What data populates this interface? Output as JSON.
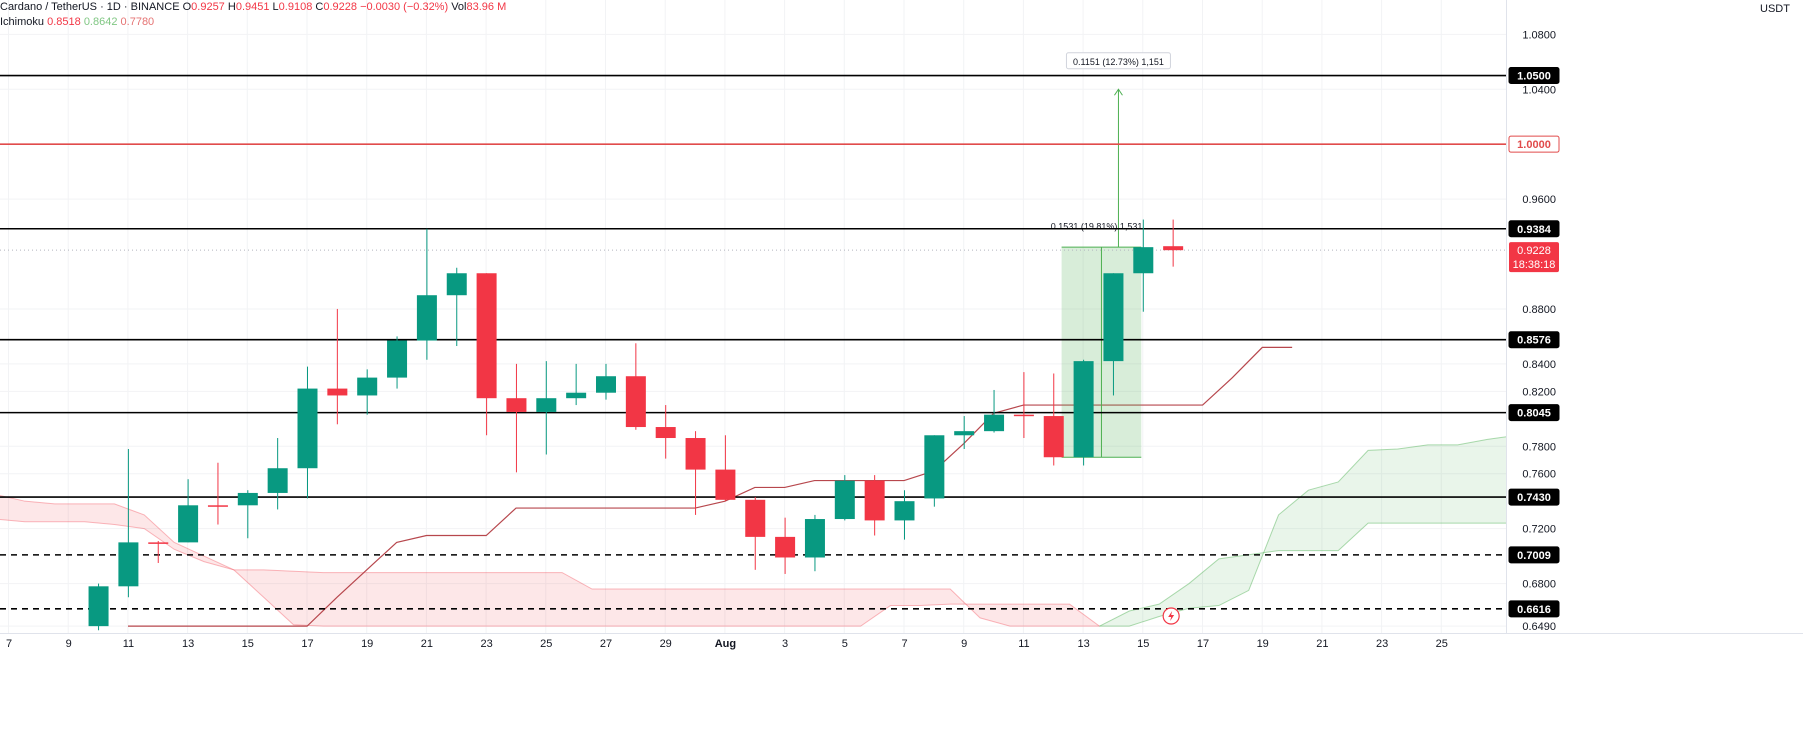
{
  "header": {
    "symbol": "Cardano / TetherUS · 1D · BINANCE",
    "o_label": "O",
    "o": "0.9257",
    "h_label": "H",
    "h": "0.9451",
    "l_label": "L",
    "l": "0.9108",
    "c_label": "C",
    "c": "0.9228",
    "change": "−0.0030 (−0.32%)",
    "vol_label": "Vol",
    "vol": "83.96 M"
  },
  "indicator": {
    "name": "Ichimoku",
    "v1": "0.8518",
    "v2": "0.8642",
    "v3": "0.7780"
  },
  "axis": {
    "currency": "USDT"
  },
  "colors": {
    "up": "#089981",
    "down": "#f23645",
    "cloud_green": "#81c784",
    "cloud_red": "#f7a1a8",
    "base_line": "#b7474d",
    "red_level": "#e14b4b",
    "measure": "#4caf50"
  },
  "chart_data": {
    "type": "candlestick",
    "x_labels": [
      "7",
      "9",
      "11",
      "13",
      "15",
      "17",
      "19",
      "21",
      "23",
      "25",
      "27",
      "29",
      "Aug",
      "3",
      "5",
      "7",
      "9",
      "11",
      "13",
      "15",
      "17",
      "19",
      "21",
      "23",
      "25"
    ],
    "y_ticks": [
      "1.0800",
      "1.0400",
      "0.9600",
      "0.8800",
      "0.8400",
      "0.8200",
      "0.7800",
      "0.7600",
      "0.7200",
      "0.6800",
      "0.6490"
    ],
    "ylim": [
      0.644,
      1.105
    ],
    "candles": [
      {
        "o": 0.649,
        "h": 0.68,
        "l": 0.646,
        "c": 0.678
      },
      {
        "o": 0.678,
        "h": 0.778,
        "l": 0.67,
        "c": 0.71
      },
      {
        "o": 0.71,
        "h": 0.711,
        "l": 0.695,
        "c": 0.709
      },
      {
        "o": 0.71,
        "h": 0.756,
        "l": 0.71,
        "c": 0.737
      },
      {
        "o": 0.737,
        "h": 0.768,
        "l": 0.723,
        "c": 0.736
      },
      {
        "o": 0.737,
        "h": 0.748,
        "l": 0.713,
        "c": 0.746
      },
      {
        "o": 0.746,
        "h": 0.786,
        "l": 0.734,
        "c": 0.764
      },
      {
        "o": 0.764,
        "h": 0.838,
        "l": 0.742,
        "c": 0.822
      },
      {
        "o": 0.822,
        "h": 0.88,
        "l": 0.796,
        "c": 0.817
      },
      {
        "o": 0.817,
        "h": 0.836,
        "l": 0.803,
        "c": 0.83
      },
      {
        "o": 0.83,
        "h": 0.86,
        "l": 0.822,
        "c": 0.857
      },
      {
        "o": 0.857,
        "h": 0.9384,
        "l": 0.843,
        "c": 0.89
      },
      {
        "o": 0.89,
        "h": 0.91,
        "l": 0.853,
        "c": 0.906
      },
      {
        "o": 0.906,
        "h": 0.906,
        "l": 0.788,
        "c": 0.815
      },
      {
        "o": 0.815,
        "h": 0.84,
        "l": 0.761,
        "c": 0.805
      },
      {
        "o": 0.805,
        "h": 0.842,
        "l": 0.774,
        "c": 0.815
      },
      {
        "o": 0.815,
        "h": 0.84,
        "l": 0.81,
        "c": 0.819
      },
      {
        "o": 0.819,
        "h": 0.84,
        "l": 0.814,
        "c": 0.831
      },
      {
        "o": 0.831,
        "h": 0.855,
        "l": 0.792,
        "c": 0.794
      },
      {
        "o": 0.794,
        "h": 0.81,
        "l": 0.771,
        "c": 0.786
      },
      {
        "o": 0.786,
        "h": 0.791,
        "l": 0.73,
        "c": 0.763
      },
      {
        "o": 0.763,
        "h": 0.788,
        "l": 0.74,
        "c": 0.741
      },
      {
        "o": 0.741,
        "h": 0.743,
        "l": 0.69,
        "c": 0.714
      },
      {
        "o": 0.714,
        "h": 0.728,
        "l": 0.687,
        "c": 0.699
      },
      {
        "o": 0.699,
        "h": 0.73,
        "l": 0.689,
        "c": 0.727
      },
      {
        "o": 0.727,
        "h": 0.759,
        "l": 0.726,
        "c": 0.755
      },
      {
        "o": 0.755,
        "h": 0.759,
        "l": 0.715,
        "c": 0.726
      },
      {
        "o": 0.726,
        "h": 0.748,
        "l": 0.712,
        "c": 0.74
      },
      {
        "o": 0.742,
        "h": 0.788,
        "l": 0.736,
        "c": 0.788
      },
      {
        "o": 0.788,
        "h": 0.802,
        "l": 0.778,
        "c": 0.791
      },
      {
        "o": 0.791,
        "h": 0.821,
        "l": 0.79,
        "c": 0.803
      },
      {
        "o": 0.803,
        "h": 0.834,
        "l": 0.786,
        "c": 0.802
      },
      {
        "o": 0.802,
        "h": 0.833,
        "l": 0.766,
        "c": 0.772
      },
      {
        "o": 0.772,
        "h": 0.843,
        "l": 0.766,
        "c": 0.842
      },
      {
        "o": 0.842,
        "h": 0.906,
        "l": 0.817,
        "c": 0.906
      },
      {
        "o": 0.906,
        "h": 0.9451,
        "l": 0.878,
        "c": 0.925
      },
      {
        "o": 0.9257,
        "h": 0.9451,
        "l": 0.9108,
        "c": 0.9228
      }
    ],
    "levels": [
      {
        "price": 1.05,
        "label": "1.0500",
        "style": "solid",
        "color": "#000000"
      },
      {
        "price": 1.0,
        "label": "1.0000",
        "style": "solid",
        "color": "#e14b4b"
      },
      {
        "price": 0.9384,
        "label": "0.9384",
        "style": "solid",
        "color": "#000000"
      },
      {
        "price": 0.8576,
        "label": "0.8576",
        "style": "solid",
        "color": "#000000"
      },
      {
        "price": 0.8045,
        "label": "0.8045",
        "style": "solid",
        "color": "#000000"
      },
      {
        "price": 0.743,
        "label": "0.7430",
        "style": "solid",
        "color": "#000000"
      },
      {
        "price": 0.7009,
        "label": "0.7009",
        "style": "dashed",
        "color": "#000000"
      },
      {
        "price": 0.6616,
        "label": "0.6616",
        "style": "dashed",
        "color": "#000000"
      }
    ],
    "last_price": {
      "price": 0.9228,
      "label": "0.9228",
      "countdown": "18:38:18"
    },
    "base_line": [
      0.649,
      0.649,
      0.649,
      0.649,
      0.649,
      0.649,
      0.649,
      0.67,
      0.69,
      0.71,
      0.715,
      0.715,
      0.715,
      0.735,
      0.735,
      0.735,
      0.735,
      0.735,
      0.735,
      0.735,
      0.74,
      0.75,
      0.75,
      0.755,
      0.755,
      0.755,
      0.755,
      0.762,
      0.782,
      0.804,
      0.81,
      0.81,
      0.81,
      0.81,
      0.81,
      0.81,
      0.81,
      0.83,
      0.852,
      0.852
    ],
    "cloud_a": [
      0.745,
      0.74,
      0.738,
      0.738,
      0.738,
      0.73,
      0.71,
      0.7,
      0.69,
      0.67,
      0.65,
      0.649,
      0.649,
      0.649,
      0.649,
      0.649,
      0.649,
      0.649,
      0.649,
      0.649,
      0.649,
      0.649,
      0.649,
      0.649,
      0.649,
      0.649,
      0.649,
      0.649,
      0.649,
      0.649,
      0.664,
      0.664,
      0.665,
      0.665,
      0.665,
      0.665,
      0.665,
      0.649,
      0.649,
      0.656,
      0.662,
      0.664,
      0.675,
      0.73,
      0.748,
      0.754,
      0.777,
      0.778,
      0.781,
      0.781,
      0.785,
      0.788,
      0.79,
      0.793,
      0.793,
      0.794,
      0.796,
      0.799,
      0.798,
      0.787,
      0.786,
      0.779,
      0.765
    ],
    "cloud_b": [
      0.727,
      0.725,
      0.725,
      0.725,
      0.723,
      0.72,
      0.705,
      0.696,
      0.69,
      0.69,
      0.689,
      0.688,
      0.688,
      0.688,
      0.688,
      0.688,
      0.688,
      0.688,
      0.688,
      0.688,
      0.676,
      0.676,
      0.676,
      0.676,
      0.676,
      0.676,
      0.676,
      0.676,
      0.676,
      0.676,
      0.676,
      0.676,
      0.676,
      0.655,
      0.649,
      0.649,
      0.649,
      0.649,
      0.66,
      0.665,
      0.68,
      0.698,
      0.701,
      0.704,
      0.704,
      0.704,
      0.724,
      0.724,
      0.724,
      0.724,
      0.724,
      0.724,
      0.724,
      0.724,
      0.724,
      0.724,
      0.724,
      0.724,
      0.724,
      0.724,
      0.724,
      0.724,
      0.724
    ],
    "measure_1": {
      "label": "0.1531 (19.81%) 1,531"
    },
    "measure_2": {
      "label": "0.1151 (12.73%) 1,151"
    }
  }
}
